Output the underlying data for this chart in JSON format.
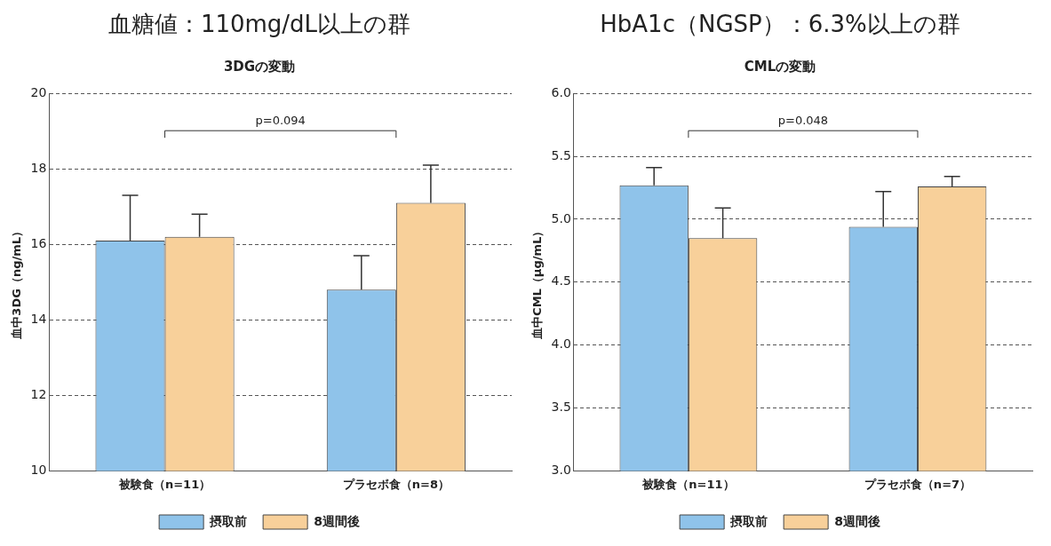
{
  "chart_data": [
    {
      "type": "bar",
      "title": "血糖値：110mg/dL以上の群",
      "subtitle": "3DGの変動",
      "ylabel": "血中3DG（ng/mL）",
      "categories": [
        "被験食（n=11）",
        "プラセボ食（n=8）"
      ],
      "series": [
        {
          "name": "摂取前",
          "color": "#8fc3ea",
          "values": [
            16.1,
            14.8
          ],
          "errors": [
            [
              16.1,
              17.3
            ],
            [
              14.8,
              15.7
            ]
          ]
        },
        {
          "name": "8週間後",
          "color": "#f8d09a",
          "values": [
            16.2,
            17.1
          ],
          "errors": [
            [
              16.2,
              16.8
            ],
            [
              17.1,
              18.1
            ]
          ]
        }
      ],
      "ylim": [
        10,
        20
      ],
      "yticks": [
        10,
        12,
        14,
        16,
        18,
        20
      ],
      "grid": "y",
      "legend": "bottom",
      "annotations": [
        "p=0.094"
      ]
    },
    {
      "type": "bar",
      "title": "HbA1c（NGSP）：6.3%以上の群",
      "subtitle": "CMLの変動",
      "ylabel": "血中CML（μg/mL）",
      "categories": [
        "被験食（n=11）",
        "プラセボ食（n=7）"
      ],
      "series": [
        {
          "name": "摂取前",
          "color": "#8fc3ea",
          "values": [
            5.27,
            4.94
          ],
          "errors": [
            [
              5.27,
              5.41
            ],
            [
              4.94,
              5.22
            ]
          ]
        },
        {
          "name": "8週間後",
          "color": "#f8d09a",
          "values": [
            4.85,
            5.26
          ],
          "errors": [
            [
              4.85,
              5.09
            ],
            [
              5.26,
              5.34
            ]
          ]
        }
      ],
      "ylim": [
        3,
        6
      ],
      "yticks": [
        {
          "value": 3,
          "label": "3.0"
        },
        3.5,
        {
          "value": 4,
          "label": "4.0"
        },
        4.5,
        {
          "value": 5,
          "label": "5.0"
        },
        5.5,
        {
          "value": 6,
          "label": "6.0"
        }
      ],
      "grid": "y",
      "legend": "bottom",
      "annotations": [
        "p=0.048"
      ]
    }
  ]
}
